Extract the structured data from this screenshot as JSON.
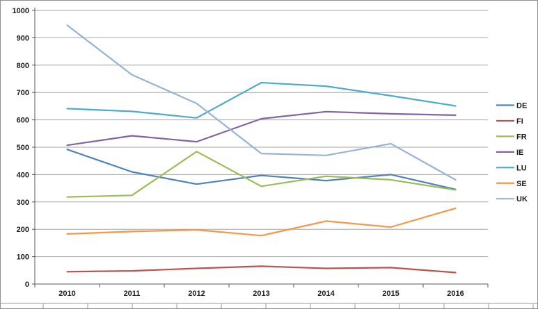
{
  "window": {
    "background": "#ffffff",
    "frame_border_color": "#8f8f8f"
  },
  "chart_data": {
    "type": "line",
    "title": "",
    "xlabel": "",
    "ylabel": "",
    "categories": [
      "2010",
      "2011",
      "2012",
      "2013",
      "2014",
      "2015",
      "2016"
    ],
    "series": [
      {
        "name": "DE",
        "color": "#4F81BD",
        "values": [
          492,
          410,
          365,
          397,
          378,
          400,
          346
        ]
      },
      {
        "name": "FI",
        "color": "#C0504D",
        "values": [
          45,
          48,
          57,
          65,
          57,
          60,
          42
        ]
      },
      {
        "name": "FR",
        "color": "#9BBB59",
        "values": [
          318,
          324,
          484,
          357,
          394,
          381,
          344
        ]
      },
      {
        "name": "IE",
        "color": "#8064A2",
        "values": [
          507,
          542,
          520,
          604,
          630,
          622,
          617
        ]
      },
      {
        "name": "LU",
        "color": "#4BACC6",
        "values": [
          641,
          631,
          607,
          736,
          723,
          688,
          651
        ]
      },
      {
        "name": "SE",
        "color": "#F79646",
        "values": [
          183,
          192,
          198,
          177,
          230,
          208,
          277
        ]
      },
      {
        "name": "UK",
        "color": "#95B3D7",
        "values": [
          946,
          765,
          660,
          477,
          470,
          513,
          381
        ]
      }
    ],
    "ylim": [
      0,
      1000
    ],
    "ytick_step": 100,
    "grid": true,
    "gridline_color": "#A6A6A6",
    "axis_color": "#595959",
    "tick_color": "#595959",
    "label_color": "#1a1a1a",
    "legend_position": "right",
    "legend_labels": [
      "DE",
      "FI",
      "FR",
      "IE",
      "LU",
      "SE",
      "UK"
    ]
  }
}
